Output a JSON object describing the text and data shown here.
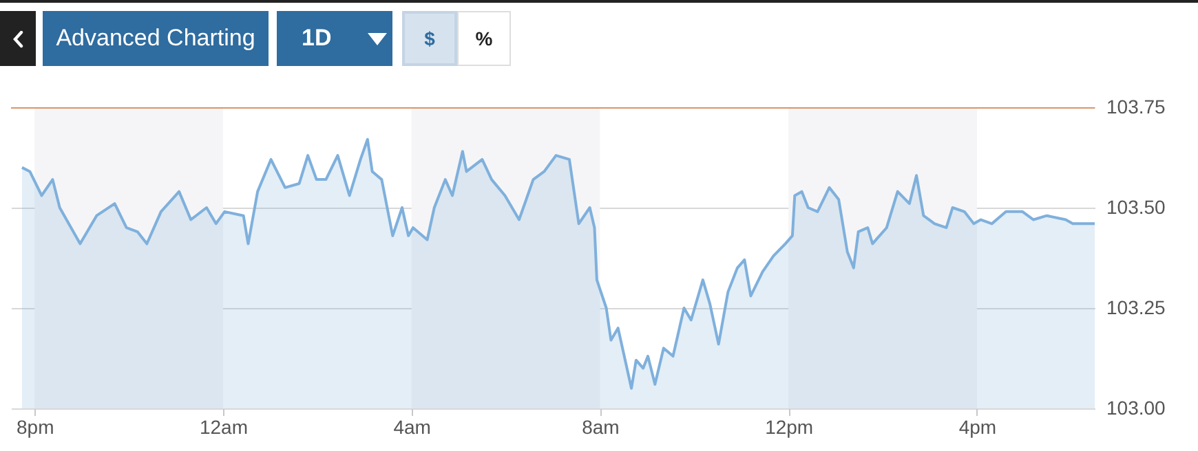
{
  "chart_data": {
    "type": "area",
    "color": "#7fb0dc",
    "x": [
      "--01-01T19:44",
      "--01-01T19:54",
      "--01-01T20:09",
      "--01-01T20:23",
      "--01-01T20:32",
      "--01-01T20:58",
      "--01-01T21:19",
      "--01-01T21:42",
      "--01-01T21:57",
      "--01-01T22:11",
      "--01-01T22:23",
      "--01-01T22:41",
      "--01-01T23:04",
      "--01-01T23:19",
      "--01-01T23:39",
      "--01-01T23:51",
      "--01-02T00:02",
      "--01-02T00:26",
      "--01-02T00:32",
      "--01-02T00:44",
      "--01-02T01:01",
      "--01-02T01:19",
      "--01-02T01:37",
      "--01-02T01:48",
      "--01-02T01:59",
      "--01-02T02:11",
      "--01-02T02:26",
      "--01-02T02:41",
      "--01-02T02:55",
      "--01-02T03:04",
      "--01-02T03:10",
      "--01-02T03:22",
      "--01-02T03:36",
      "--01-02T03:48",
      "--01-02T03:56",
      "--01-02T04:02",
      "--01-02T04:20",
      "--01-02T04:29",
      "--01-02T04:43",
      "--01-02T04:52",
      "--01-02T05:05",
      "--01-02T05:10",
      "--01-02T05:30",
      "--01-02T05:42",
      "--01-02T05:59",
      "--01-02T06:17",
      "--01-02T06:35",
      "--01-02T06:49",
      "--01-02T07:04",
      "--01-02T07:21",
      "--01-02T07:33",
      "--01-02T07:47",
      "--01-02T07:53",
      "--01-02T07:56",
      "--01-02T08:08",
      "--01-02T08:14",
      "--01-02T08:23",
      "--01-02T08:40",
      "--01-02T08:46",
      "--01-02T08:55",
      "--01-02T09:01",
      "--01-02T09:10",
      "--01-02T09:21",
      "--01-02T09:33",
      "--01-02T09:47",
      "--01-02T09:56",
      "--01-02T10:11",
      "--01-02T10:20",
      "--01-02T10:31",
      "--01-02T10:43",
      "--01-02T10:55",
      "--01-02T11:04",
      "--01-02T11:12",
      "--01-02T11:27",
      "--01-02T11:41",
      "--01-02T11:56",
      "--01-02T12:05",
      "--01-02T12:08",
      "--01-02T12:17",
      "--01-02T12:25",
      "--01-02T12:37",
      "--01-02T12:52",
      "--01-02T13:04",
      "--01-02T13:15",
      "--01-02T13:23",
      "--01-02T13:29",
      "--01-02T13:41",
      "--01-02T13:47",
      "--01-02T14:05",
      "--01-02T14:19",
      "--01-02T14:34",
      "--01-02T14:43",
      "--01-02T14:52",
      "--01-02T15:06",
      "--01-02T15:21",
      "--01-02T15:29",
      "--01-02T15:44",
      "--01-02T15:56",
      "--01-02T16:05",
      "--01-02T16:19",
      "--01-02T16:37",
      "--01-02T16:58",
      "--01-02T17:12",
      "--01-02T17:29",
      "--01-02T17:53",
      "--01-02T18:02",
      "--01-02T18:30"
    ],
    "values": [
      103.6,
      103.59,
      103.53,
      103.57,
      103.5,
      103.41,
      103.48,
      103.51,
      103.45,
      103.44,
      103.41,
      103.49,
      103.54,
      103.47,
      103.5,
      103.46,
      103.49,
      103.48,
      103.41,
      103.54,
      103.62,
      103.55,
      103.56,
      103.63,
      103.57,
      103.57,
      103.63,
      103.53,
      103.62,
      103.67,
      103.59,
      103.57,
      103.43,
      103.5,
      103.43,
      103.45,
      103.42,
      103.5,
      103.57,
      103.53,
      103.64,
      103.59,
      103.62,
      103.57,
      103.53,
      103.47,
      103.57,
      103.59,
      103.63,
      103.62,
      103.46,
      103.5,
      103.45,
      103.32,
      103.25,
      103.17,
      103.2,
      103.05,
      103.12,
      103.1,
      103.13,
      103.06,
      103.15,
      103.13,
      103.25,
      103.22,
      103.32,
      103.26,
      103.16,
      103.29,
      103.35,
      103.37,
      103.28,
      103.34,
      103.38,
      103.41,
      103.43,
      103.53,
      103.54,
      103.5,
      103.49,
      103.55,
      103.52,
      103.39,
      103.35,
      103.44,
      103.45,
      103.41,
      103.45,
      103.54,
      103.51,
      103.58,
      103.48,
      103.46,
      103.45,
      103.5,
      103.49,
      103.46,
      103.47,
      103.46,
      103.49,
      103.49,
      103.47,
      103.48,
      103.47,
      103.46,
      103.46
    ],
    "xlim": [
      "--01-01T19:30",
      "--01-02T18:30"
    ],
    "xticks": [
      {
        "value": "--01-01T20:00",
        "label": "8pm"
      },
      {
        "value": "--01-02T00:00",
        "label": "12am"
      },
      {
        "value": "--01-02T04:00",
        "label": "4am"
      },
      {
        "value": "--01-02T08:00",
        "label": "8am"
      },
      {
        "value": "--01-02T12:00",
        "label": "12pm"
      },
      {
        "value": "--01-02T16:00",
        "label": "4pm"
      }
    ],
    "ylim": [
      103.0,
      103.75
    ],
    "yticks": [
      {
        "value": 103.0,
        "label": "103.00"
      },
      {
        "value": 103.25,
        "label": "103.25"
      },
      {
        "value": 103.5,
        "label": "103.50"
      },
      {
        "value": 103.75,
        "label": "103.75"
      }
    ],
    "grid": "y",
    "ref_lines": [
      {
        "axis": "y",
        "value": 103.75,
        "color": "#d9956a"
      }
    ],
    "bands": [
      {
        "axis": "x",
        "from": "--01-01T20:00",
        "to": "--01-02T00:00",
        "color": "#f5f5f7"
      },
      {
        "axis": "x",
        "from": "--01-02T04:00",
        "to": "--01-02T08:00",
        "color": "#f5f5f7"
      },
      {
        "axis": "x",
        "from": "--01-02T12:00",
        "to": "--01-02T16:00",
        "color": "#f5f5f7"
      }
    ],
    "annotations": [
      "Advanced Charting",
      "1D",
      "$",
      "%"
    ]
  }
}
